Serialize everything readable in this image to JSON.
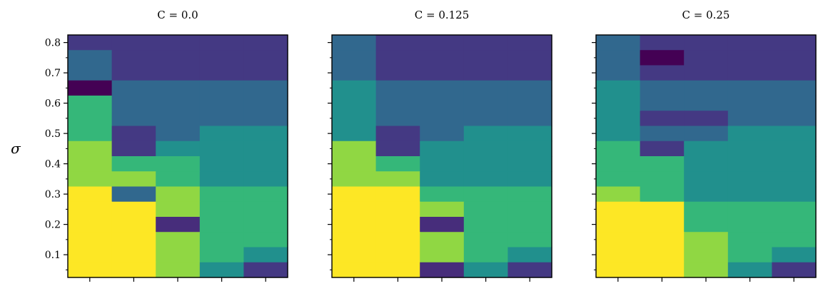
{
  "chart_data": {
    "type": "heatmap",
    "ylabel": "σ",
    "y_range": [
      0.025,
      0.825
    ],
    "y_ticks": [
      0.1,
      0.2,
      0.3,
      0.4,
      0.5,
      0.6,
      0.7,
      0.8
    ],
    "y_tick_labels": [
      "0.1",
      "0.2",
      "0.3",
      "0.4",
      "0.5",
      "0.6",
      "0.7",
      "0.8"
    ],
    "x_columns": 5,
    "x_tick_labels": [],
    "colormap": "viridis",
    "palette": {
      "A": "#440154",
      "B": "#472d7b",
      "C": "#443983",
      "D": "#31688e",
      "E": "#1f9a8a",
      "F": "#21908d",
      "G": "#35b779",
      "H": "#90d743",
      "I": "#fde725"
    },
    "row_step": 0.05,
    "panels": [
      {
        "title": "C = 0.0",
        "rows_top_to_bottom": [
          [
            "C",
            "C",
            "C",
            "C",
            "C"
          ],
          [
            "D",
            "C",
            "C",
            "C",
            "C"
          ],
          [
            "D",
            "C",
            "C",
            "C",
            "C"
          ],
          [
            "A",
            "D",
            "D",
            "D",
            "D"
          ],
          [
            "G",
            "D",
            "D",
            "D",
            "D"
          ],
          [
            "G",
            "D",
            "D",
            "D",
            "D"
          ],
          [
            "G",
            "C",
            "D",
            "F",
            "F"
          ],
          [
            "H",
            "C",
            "F",
            "F",
            "F"
          ],
          [
            "H",
            "G",
            "G",
            "F",
            "F"
          ],
          [
            "H",
            "H",
            "G",
            "F",
            "F"
          ],
          [
            "I",
            "D",
            "H",
            "G",
            "G"
          ],
          [
            "I",
            "I",
            "H",
            "G",
            "G"
          ],
          [
            "I",
            "I",
            "B",
            "G",
            "G"
          ],
          [
            "I",
            "I",
            "H",
            "G",
            "G"
          ],
          [
            "I",
            "I",
            "H",
            "G",
            "F"
          ],
          [
            "I",
            "I",
            "H",
            "F",
            "C"
          ]
        ]
      },
      {
        "title": "C = 0.125",
        "rows_top_to_bottom": [
          [
            "D",
            "C",
            "C",
            "C",
            "C"
          ],
          [
            "D",
            "C",
            "C",
            "C",
            "C"
          ],
          [
            "D",
            "C",
            "C",
            "C",
            "C"
          ],
          [
            "F",
            "D",
            "D",
            "D",
            "D"
          ],
          [
            "F",
            "D",
            "D",
            "D",
            "D"
          ],
          [
            "F",
            "D",
            "D",
            "D",
            "D"
          ],
          [
            "F",
            "C",
            "D",
            "F",
            "F"
          ],
          [
            "H",
            "C",
            "F",
            "F",
            "F"
          ],
          [
            "H",
            "G",
            "F",
            "F",
            "F"
          ],
          [
            "H",
            "H",
            "F",
            "F",
            "F"
          ],
          [
            "I",
            "I",
            "G",
            "G",
            "G"
          ],
          [
            "I",
            "I",
            "H",
            "G",
            "G"
          ],
          [
            "I",
            "I",
            "B",
            "G",
            "G"
          ],
          [
            "I",
            "I",
            "H",
            "G",
            "G"
          ],
          [
            "I",
            "I",
            "H",
            "G",
            "F"
          ],
          [
            "I",
            "I",
            "B",
            "F",
            "C"
          ]
        ]
      },
      {
        "title": "C = 0.25",
        "rows_top_to_bottom": [
          [
            "D",
            "C",
            "C",
            "C",
            "C"
          ],
          [
            "D",
            "A",
            "C",
            "C",
            "C"
          ],
          [
            "D",
            "C",
            "C",
            "C",
            "C"
          ],
          [
            "F",
            "D",
            "D",
            "D",
            "D"
          ],
          [
            "F",
            "D",
            "D",
            "D",
            "D"
          ],
          [
            "F",
            "C",
            "C",
            "D",
            "D"
          ],
          [
            "F",
            "D",
            "D",
            "F",
            "F"
          ],
          [
            "G",
            "C",
            "F",
            "F",
            "F"
          ],
          [
            "G",
            "G",
            "F",
            "F",
            "F"
          ],
          [
            "G",
            "G",
            "F",
            "F",
            "F"
          ],
          [
            "H",
            "G",
            "F",
            "F",
            "F"
          ],
          [
            "I",
            "I",
            "G",
            "G",
            "G"
          ],
          [
            "I",
            "I",
            "G",
            "G",
            "G"
          ],
          [
            "I",
            "I",
            "H",
            "G",
            "G"
          ],
          [
            "I",
            "I",
            "H",
            "G",
            "F"
          ],
          [
            "I",
            "I",
            "H",
            "F",
            "C"
          ]
        ]
      }
    ]
  }
}
